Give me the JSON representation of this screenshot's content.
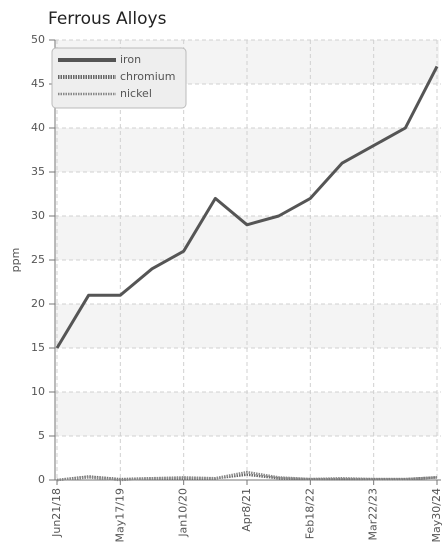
{
  "chart_data": {
    "type": "line",
    "title": "Ferrous Alloys",
    "y_label": "ppm",
    "categories": [
      "Jun21/18",
      null,
      "May17/19",
      null,
      "Jan10/20",
      null,
      "Apr8/21",
      null,
      "Feb18/22",
      null,
      "Mar22/23",
      null,
      "May30/24"
    ],
    "series": [
      {
        "name": "iron",
        "color": "#555555",
        "line_style": "solid",
        "values": [
          15,
          21,
          21,
          24,
          26,
          32,
          29,
          30,
          32,
          36,
          38,
          40,
          47
        ]
      },
      {
        "name": "chromium",
        "color": "#666666",
        "line_style": "dotted",
        "values": [
          0,
          0.4,
          0.1,
          0.2,
          0.2,
          0.2,
          0.6,
          0.2,
          0.1,
          0.1,
          0.1,
          0.1,
          0.3
        ]
      },
      {
        "name": "nickel",
        "color": "#888888",
        "line_style": "dotted",
        "values": [
          0,
          0.3,
          0,
          0.2,
          0.3,
          0.2,
          0.9,
          0.3,
          0.1,
          0.2,
          0.1,
          0.1,
          0.3
        ]
      }
    ],
    "ylim": [
      0,
      50
    ],
    "yticks": [
      0,
      5,
      10,
      15,
      20,
      25,
      30,
      35,
      40,
      45,
      50
    ],
    "grid": true,
    "legend": "top-left"
  }
}
